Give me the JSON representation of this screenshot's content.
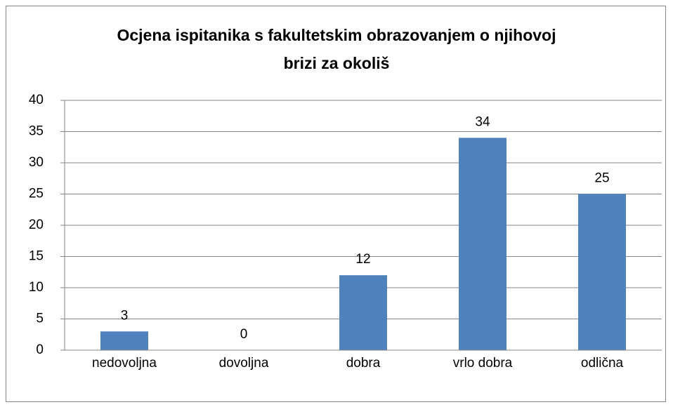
{
  "chart_data": {
    "type": "bar",
    "title": "Ocjena ispitanika s fakultetskim obrazovanjem o njihovoj brizi za okoliš",
    "categories": [
      "nedovoljna",
      "dovoljna",
      "dobra",
      "vrlo dobra",
      "odlična"
    ],
    "values": [
      3,
      0,
      12,
      34,
      25
    ],
    "color": "#4f81bd",
    "ylim": [
      0,
      40
    ],
    "yticks": [
      0,
      5,
      10,
      15,
      20,
      25,
      30,
      35,
      40
    ],
    "grid": true,
    "data_labels": true
  }
}
